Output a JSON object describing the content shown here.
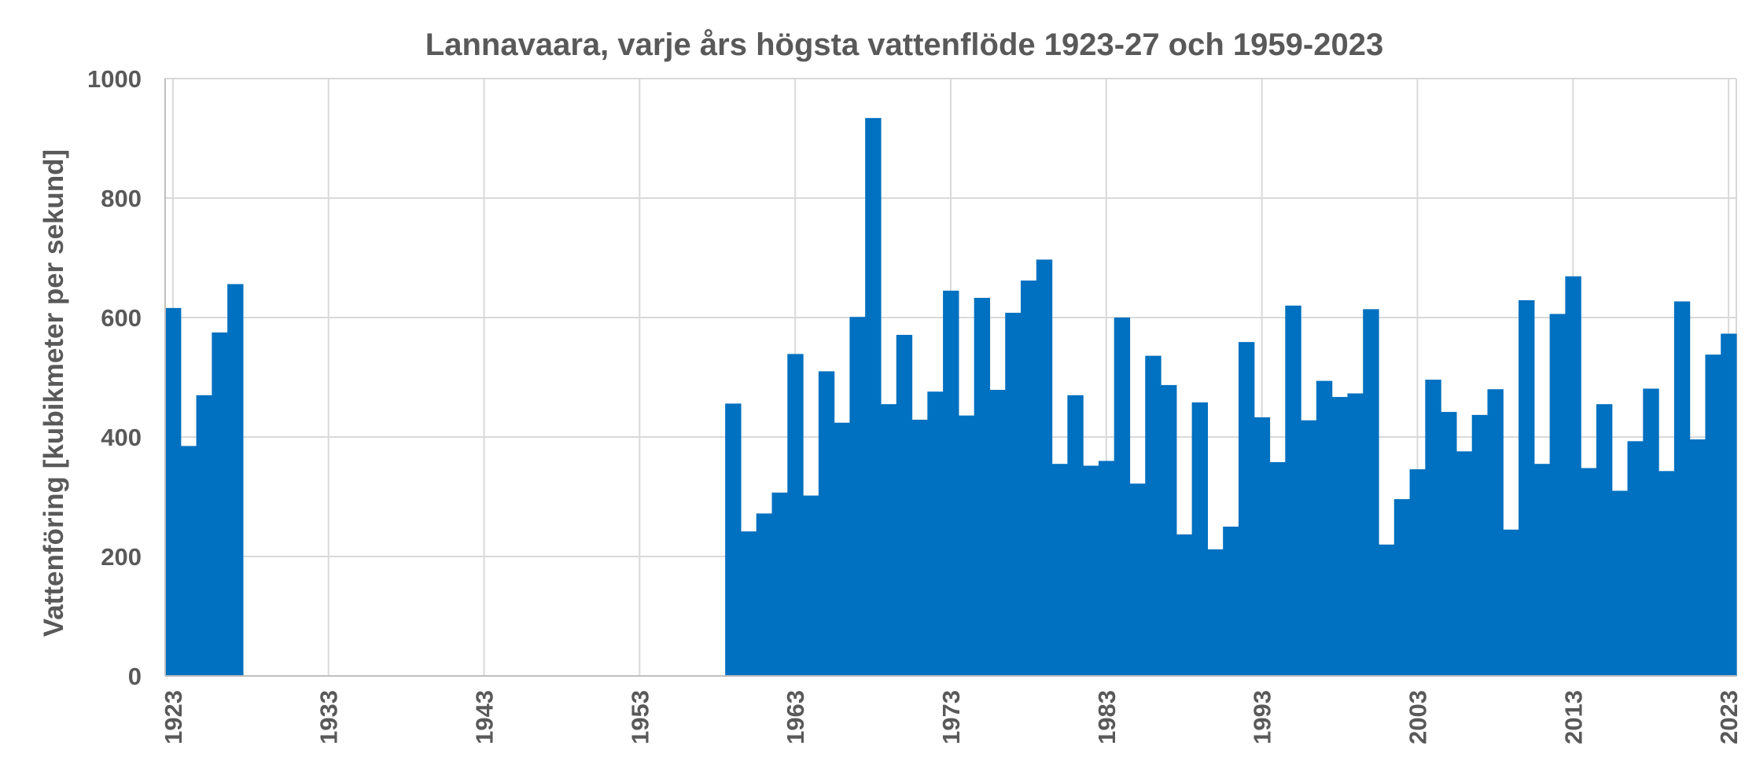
{
  "chart_data": {
    "type": "bar",
    "title": "Lannavaara, varje års högsta vattenflöde 1923-27 och 1959-2023",
    "xlabel": "",
    "ylabel": "Vattenföring [kubikmeter per sekund]",
    "ylim": [
      0,
      1000
    ],
    "xlim": [
      1923,
      2023
    ],
    "yticks": [
      "0",
      "200",
      "400",
      "600",
      "800",
      "1000"
    ],
    "xticks": [
      "1923",
      "1933",
      "1943",
      "1953",
      "1963",
      "1973",
      "1983",
      "1993",
      "2003",
      "2013",
      "2023"
    ],
    "grid": true,
    "color": "#0070C0",
    "series": [
      {
        "years": [
          1923,
          1924,
          1925,
          1926,
          1927,
          1959,
          1960,
          1961,
          1962,
          1963,
          1964,
          1965,
          1966,
          1967,
          1968,
          1969,
          1970,
          1971,
          1972,
          1973,
          1974,
          1975,
          1976,
          1977,
          1978,
          1979,
          1980,
          1981,
          1982,
          1983,
          1984,
          1985,
          1986,
          1987,
          1988,
          1989,
          1990,
          1991,
          1992,
          1993,
          1994,
          1995,
          1996,
          1997,
          1998,
          1999,
          2000,
          2001,
          2002,
          2003,
          2004,
          2005,
          2006,
          2007,
          2008,
          2009,
          2010,
          2011,
          2012,
          2013,
          2014,
          2015,
          2016,
          2017,
          2018,
          2019,
          2020,
          2021,
          2022,
          2023
        ],
        "values": [
          616,
          385,
          470,
          575,
          656,
          456,
          242,
          272,
          307,
          539,
          302,
          510,
          424,
          601,
          934,
          455,
          571,
          429,
          476,
          645,
          436,
          633,
          479,
          608,
          662,
          697,
          355,
          470,
          352,
          360,
          600,
          322,
          536,
          487,
          237,
          458,
          212,
          250,
          559,
          433,
          358,
          620,
          428,
          494,
          467,
          473,
          614,
          220,
          296,
          346,
          496,
          442,
          376,
          437,
          480,
          245,
          629,
          355,
          606,
          669,
          348,
          455,
          310,
          393,
          481,
          343,
          627,
          396,
          538,
          573
        ]
      }
    ]
  }
}
